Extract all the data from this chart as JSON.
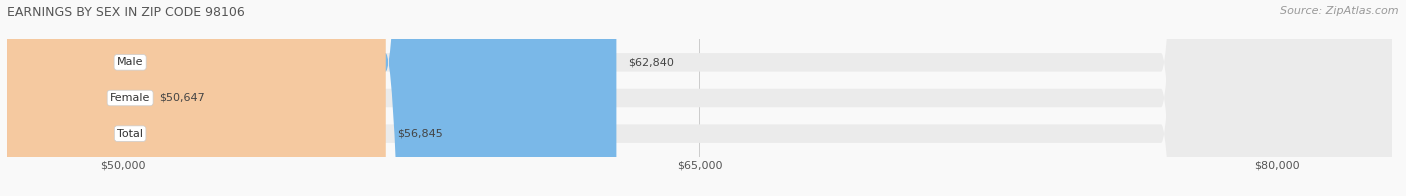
{
  "title": "EARNINGS BY SEX IN ZIP CODE 98106",
  "source": "Source: ZipAtlas.com",
  "categories": [
    "Male",
    "Female",
    "Total"
  ],
  "values": [
    62840,
    50647,
    56845
  ],
  "bar_colors": [
    "#7ab8e8",
    "#f0a0b0",
    "#f5c9a0"
  ],
  "bar_bg_color": "#ebebeb",
  "x_min": 47000,
  "x_max": 83000,
  "x_ticks": [
    50000,
    65000,
    80000
  ],
  "x_tick_labels": [
    "$50,000",
    "$65,000",
    "$80,000"
  ],
  "value_labels": [
    "$62,840",
    "$50,647",
    "$56,845"
  ],
  "bar_height": 0.52,
  "fig_bg_color": "#f9f9f9",
  "title_fontsize": 9,
  "source_fontsize": 8,
  "label_fontsize": 8,
  "tick_fontsize": 8,
  "value_fontsize": 8
}
